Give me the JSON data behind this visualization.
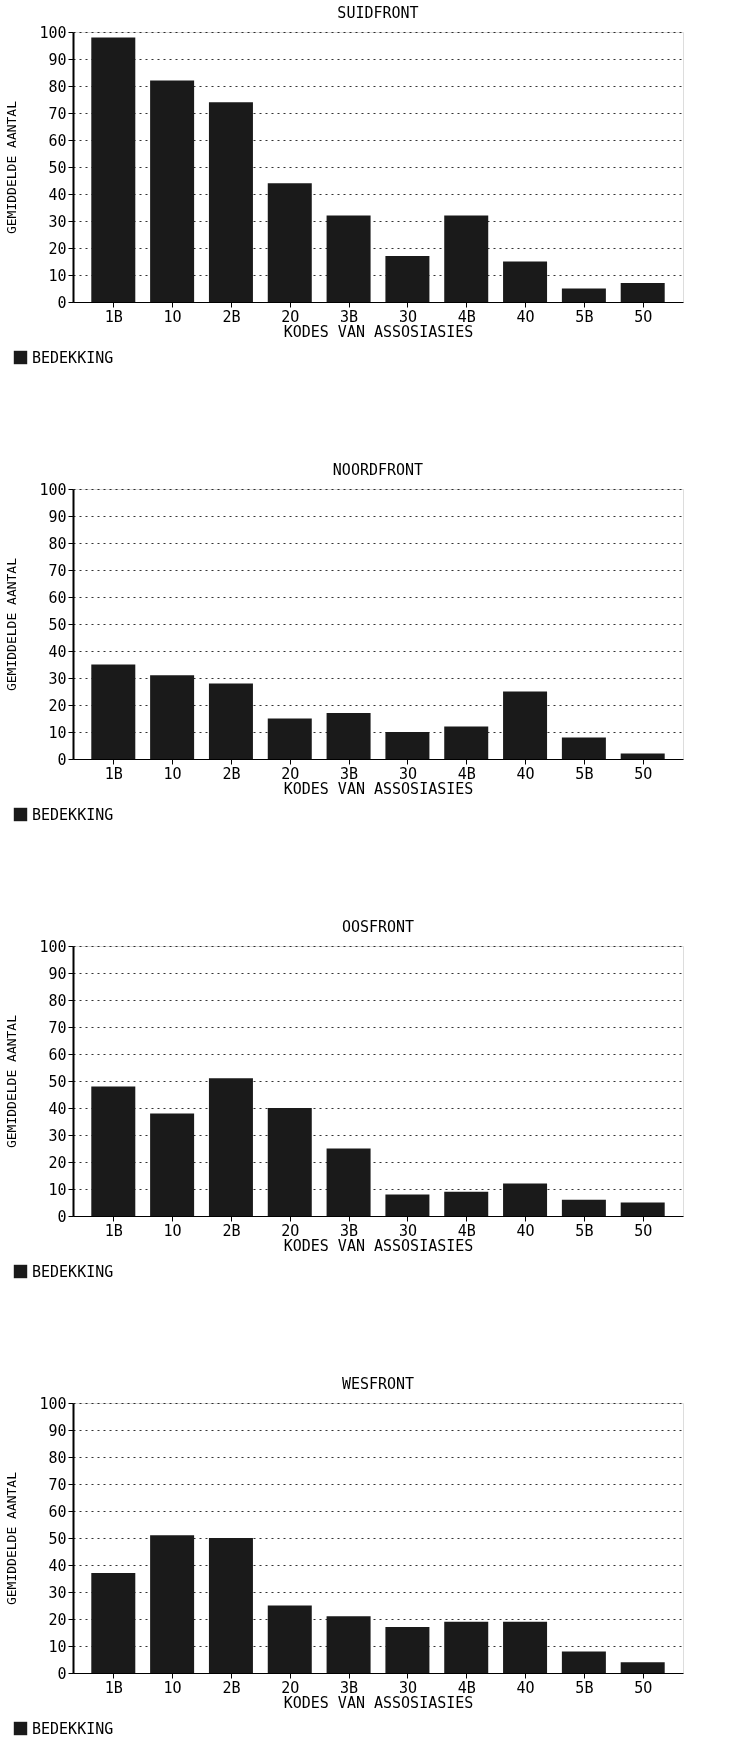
{
  "chart_data": [
    {
      "type": "bar",
      "title": "SUIDFRONT",
      "xlabel": "KODES VAN ASSOSIASIES",
      "ylabel": "GEMIDDELDE AANTAL",
      "categories": [
        "1B",
        "1O",
        "2B",
        "2O",
        "3B",
        "3O",
        "4B",
        "4O",
        "5B",
        "5O"
      ],
      "series": [
        {
          "name": "BEDEKKING",
          "color": "#1a1a1a",
          "values": [
            98,
            82,
            74,
            44,
            32,
            17,
            32,
            15,
            5,
            7
          ]
        }
      ],
      "ylim": [
        0,
        100
      ],
      "yticks": [
        0,
        10,
        20,
        30,
        40,
        50,
        60,
        70,
        80,
        90,
        100
      ],
      "grid": "y",
      "legend": "bottom left"
    },
    {
      "type": "bar",
      "title": "NOORDFRONT",
      "xlabel": "KODES VAN ASSOSIASIES",
      "ylabel": "GEMIDDELDE AANTAL",
      "categories": [
        "1B",
        "1O",
        "2B",
        "2O",
        "3B",
        "3O",
        "4B",
        "4O",
        "5B",
        "5O"
      ],
      "series": [
        {
          "name": "BEDEKKING",
          "color": "#1a1a1a",
          "values": [
            35,
            31,
            28,
            15,
            17,
            10,
            12,
            25,
            8,
            2
          ]
        }
      ],
      "ylim": [
        0,
        100
      ],
      "yticks": [
        0,
        10,
        20,
        30,
        40,
        50,
        60,
        70,
        80,
        90,
        100
      ],
      "grid": "y",
      "legend": "bottom left"
    },
    {
      "type": "bar",
      "title": "OOSFRONT",
      "xlabel": "KODES VAN ASSOSIASIES",
      "ylabel": "GEMIDDELDE AANTAL",
      "categories": [
        "1B",
        "1O",
        "2B",
        "2O",
        "3B",
        "3O",
        "4B",
        "4O",
        "5B",
        "5O"
      ],
      "series": [
        {
          "name": "BEDEKKING",
          "color": "#1a1a1a",
          "values": [
            48,
            38,
            51,
            40,
            25,
            8,
            9,
            12,
            6,
            5
          ]
        }
      ],
      "ylim": [
        0,
        100
      ],
      "yticks": [
        0,
        10,
        20,
        30,
        40,
        50,
        60,
        70,
        80,
        90,
        100
      ],
      "grid": "y",
      "legend": "bottom left"
    },
    {
      "type": "bar",
      "title": "WESFRONT",
      "xlabel": "KODES VAN ASSOSIASIES",
      "ylabel": "GEMIDDELDE AANTAL",
      "categories": [
        "1B",
        "1O",
        "2B",
        "2O",
        "3B",
        "3O",
        "4B",
        "4O",
        "5B",
        "5O"
      ],
      "series": [
        {
          "name": "BEDEKKING",
          "color": "#1a1a1a",
          "values": [
            37,
            51,
            50,
            25,
            21,
            17,
            19,
            19,
            8,
            4
          ]
        }
      ],
      "ylim": [
        0,
        100
      ],
      "yticks": [
        0,
        10,
        20,
        30,
        40,
        50,
        60,
        70,
        80,
        90,
        100
      ],
      "grid": "y",
      "legend": "bottom left"
    }
  ]
}
